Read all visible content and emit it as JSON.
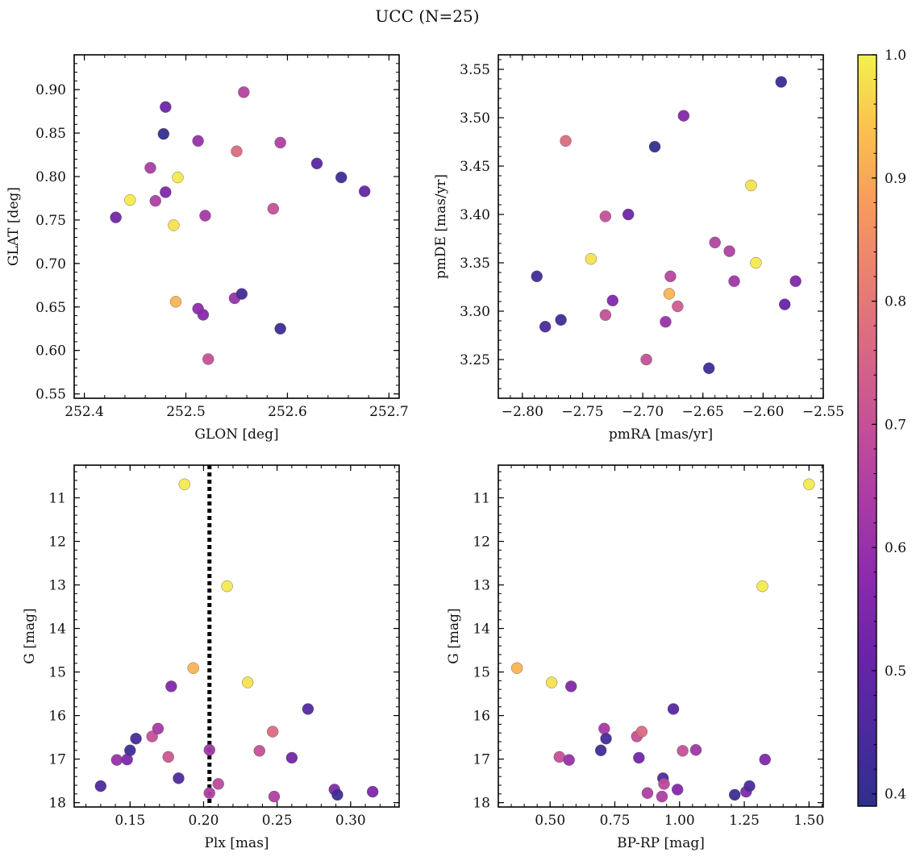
{
  "figure": {
    "title": "UCC (N=25)"
  },
  "colorbar": {
    "min": 0.39,
    "max": 1.0,
    "ticks": [
      0.4,
      0.5,
      0.6,
      0.7,
      0.8,
      0.9,
      1.0
    ],
    "tick_labels": [
      "0.4",
      "0.5",
      "0.6",
      "0.7",
      "0.8",
      "0.9",
      "1.0"
    ],
    "colormap": "plasma"
  },
  "chart_data": [
    {
      "type": "scatter",
      "id": "sky",
      "title": "",
      "xlabel": "GLON [deg]",
      "ylabel": "GLAT [deg]",
      "xlim": [
        252.39,
        252.71
      ],
      "ylim": [
        0.545,
        0.94
      ],
      "xticks": [
        252.4,
        252.5,
        252.6,
        252.7
      ],
      "xtick_labels": [
        "252.4",
        "252.5",
        "252.6",
        "252.7"
      ],
      "yticks": [
        0.55,
        0.6,
        0.65,
        0.7,
        0.75,
        0.8,
        0.85,
        0.9
      ],
      "ytick_labels": [
        "0.55",
        "0.60",
        "0.65",
        "0.70",
        "0.75",
        "0.80",
        "0.85",
        "0.90"
      ],
      "points": [
        {
          "x": 252.431,
          "y": 0.753,
          "c": 0.53
        },
        {
          "x": 252.445,
          "y": 0.773,
          "c": 0.99
        },
        {
          "x": 252.465,
          "y": 0.81,
          "c": 0.64
        },
        {
          "x": 252.47,
          "y": 0.772,
          "c": 0.65
        },
        {
          "x": 252.478,
          "y": 0.849,
          "c": 0.4
        },
        {
          "x": 252.48,
          "y": 0.88,
          "c": 0.52
        },
        {
          "x": 252.48,
          "y": 0.782,
          "c": 0.55
        },
        {
          "x": 252.488,
          "y": 0.744,
          "c": 0.98
        },
        {
          "x": 252.49,
          "y": 0.656,
          "c": 0.92
        },
        {
          "x": 252.492,
          "y": 0.799,
          "c": 0.99
        },
        {
          "x": 252.512,
          "y": 0.841,
          "c": 0.6
        },
        {
          "x": 252.512,
          "y": 0.648,
          "c": 0.58
        },
        {
          "x": 252.517,
          "y": 0.641,
          "c": 0.57
        },
        {
          "x": 252.519,
          "y": 0.755,
          "c": 0.63
        },
        {
          "x": 252.522,
          "y": 0.59,
          "c": 0.7
        },
        {
          "x": 252.548,
          "y": 0.66,
          "c": 0.6
        },
        {
          "x": 252.55,
          "y": 0.829,
          "c": 0.77
        },
        {
          "x": 252.555,
          "y": 0.665,
          "c": 0.44
        },
        {
          "x": 252.557,
          "y": 0.897,
          "c": 0.66
        },
        {
          "x": 252.586,
          "y": 0.763,
          "c": 0.7
        },
        {
          "x": 252.593,
          "y": 0.839,
          "c": 0.65
        },
        {
          "x": 252.593,
          "y": 0.625,
          "c": 0.42
        },
        {
          "x": 252.629,
          "y": 0.815,
          "c": 0.48
        },
        {
          "x": 252.653,
          "y": 0.799,
          "c": 0.43
        },
        {
          "x": 252.676,
          "y": 0.783,
          "c": 0.5
        }
      ]
    },
    {
      "type": "scatter",
      "id": "pm",
      "title": "",
      "xlabel": "pmRA [mas/yr]",
      "ylabel": "pmDE [mas/yr]",
      "xlim": [
        -2.82,
        -2.55
      ],
      "ylim": [
        3.21,
        3.565
      ],
      "xticks": [
        -2.8,
        -2.75,
        -2.7,
        -2.65,
        -2.6,
        -2.55
      ],
      "xtick_labels": [
        "−2.80",
        "−2.75",
        "−2.70",
        "−2.65",
        "−2.60",
        "−2.55"
      ],
      "yticks": [
        3.25,
        3.3,
        3.35,
        3.4,
        3.45,
        3.5,
        3.55
      ],
      "ytick_labels": [
        "3.25",
        "3.30",
        "3.35",
        "3.40",
        "3.45",
        "3.50",
        "3.55"
      ],
      "points": [
        {
          "x": -2.788,
          "y": 3.336,
          "c": 0.43
        },
        {
          "x": -2.781,
          "y": 3.284,
          "c": 0.45
        },
        {
          "x": -2.768,
          "y": 3.291,
          "c": 0.43
        },
        {
          "x": -2.764,
          "y": 3.476,
          "c": 0.77
        },
        {
          "x": -2.743,
          "y": 3.354,
          "c": 0.98
        },
        {
          "x": -2.731,
          "y": 3.398,
          "c": 0.7
        },
        {
          "x": -2.731,
          "y": 3.296,
          "c": 0.7
        },
        {
          "x": -2.725,
          "y": 3.311,
          "c": 0.56
        },
        {
          "x": -2.712,
          "y": 3.4,
          "c": 0.52
        },
        {
          "x": -2.697,
          "y": 3.25,
          "c": 0.7
        },
        {
          "x": -2.69,
          "y": 3.47,
          "c": 0.4
        },
        {
          "x": -2.681,
          "y": 3.289,
          "c": 0.6
        },
        {
          "x": -2.678,
          "y": 3.318,
          "c": 0.92
        },
        {
          "x": -2.677,
          "y": 3.336,
          "c": 0.67
        },
        {
          "x": -2.671,
          "y": 3.305,
          "c": 0.73
        },
        {
          "x": -2.666,
          "y": 3.502,
          "c": 0.56
        },
        {
          "x": -2.645,
          "y": 3.241,
          "c": 0.42
        },
        {
          "x": -2.64,
          "y": 3.371,
          "c": 0.66
        },
        {
          "x": -2.628,
          "y": 3.362,
          "c": 0.65
        },
        {
          "x": -2.624,
          "y": 3.331,
          "c": 0.62
        },
        {
          "x": -2.61,
          "y": 3.43,
          "c": 0.98
        },
        {
          "x": -2.606,
          "y": 3.35,
          "c": 0.99
        },
        {
          "x": -2.585,
          "y": 3.537,
          "c": 0.41
        },
        {
          "x": -2.582,
          "y": 3.307,
          "c": 0.5
        },
        {
          "x": -2.573,
          "y": 3.331,
          "c": 0.55
        }
      ]
    },
    {
      "type": "scatter",
      "id": "cmd_plx",
      "title": "",
      "xlabel": "Plx [mas]",
      "ylabel": "G [mag]",
      "xlim": [
        0.112,
        0.333
      ],
      "ylim": [
        18.1,
        10.25
      ],
      "y_inverted": true,
      "xticks": [
        0.15,
        0.2,
        0.25,
        0.3
      ],
      "xtick_labels": [
        "0.15",
        "0.20",
        "0.25",
        "0.30"
      ],
      "yticks": [
        11,
        12,
        13,
        14,
        15,
        16,
        17,
        18
      ],
      "ytick_labels": [
        "11",
        "12",
        "13",
        "14",
        "15",
        "16",
        "17",
        "18"
      ],
      "vline": 0.204,
      "points": [
        {
          "x": 0.13,
          "y": 17.62,
          "c": 0.45
        },
        {
          "x": 0.141,
          "y": 17.02,
          "c": 0.6
        },
        {
          "x": 0.148,
          "y": 17.01,
          "c": 0.55
        },
        {
          "x": 0.15,
          "y": 16.8,
          "c": 0.43
        },
        {
          "x": 0.154,
          "y": 16.53,
          "c": 0.44
        },
        {
          "x": 0.165,
          "y": 16.48,
          "c": 0.7
        },
        {
          "x": 0.169,
          "y": 16.3,
          "c": 0.63
        },
        {
          "x": 0.176,
          "y": 16.95,
          "c": 0.72
        },
        {
          "x": 0.178,
          "y": 15.33,
          "c": 0.56
        },
        {
          "x": 0.183,
          "y": 17.44,
          "c": 0.46
        },
        {
          "x": 0.187,
          "y": 10.69,
          "c": 0.99
        },
        {
          "x": 0.193,
          "y": 14.91,
          "c": 0.92
        },
        {
          "x": 0.204,
          "y": 17.78,
          "c": 0.65
        },
        {
          "x": 0.204,
          "y": 16.79,
          "c": 0.62
        },
        {
          "x": 0.21,
          "y": 17.57,
          "c": 0.68
        },
        {
          "x": 0.216,
          "y": 13.03,
          "c": 0.99
        },
        {
          "x": 0.23,
          "y": 15.24,
          "c": 0.98
        },
        {
          "x": 0.238,
          "y": 16.81,
          "c": 0.7
        },
        {
          "x": 0.247,
          "y": 16.37,
          "c": 0.77
        },
        {
          "x": 0.248,
          "y": 17.86,
          "c": 0.65
        },
        {
          "x": 0.26,
          "y": 16.97,
          "c": 0.53
        },
        {
          "x": 0.271,
          "y": 15.85,
          "c": 0.47
        },
        {
          "x": 0.289,
          "y": 17.7,
          "c": 0.56
        },
        {
          "x": 0.291,
          "y": 17.82,
          "c": 0.42
        },
        {
          "x": 0.315,
          "y": 17.75,
          "c": 0.55
        }
      ]
    },
    {
      "type": "scatter",
      "id": "cmd_color",
      "title": "",
      "xlabel": "BP-RP [mag]",
      "ylabel": "G [mag]",
      "xlim": [
        0.3,
        1.555
      ],
      "ylim": [
        18.1,
        10.25
      ],
      "y_inverted": true,
      "xticks": [
        0.5,
        0.75,
        1.0,
        1.25,
        1.5
      ],
      "xtick_labels": [
        "0.50",
        "0.75",
        "1.00",
        "1.25",
        "1.50"
      ],
      "yticks": [
        11,
        12,
        13,
        14,
        15,
        16,
        17,
        18
      ],
      "ytick_labels": [
        "11",
        "12",
        "13",
        "14",
        "15",
        "16",
        "17",
        "18"
      ],
      "points": [
        {
          "x": 0.372,
          "y": 14.91,
          "c": 0.92
        },
        {
          "x": 0.506,
          "y": 15.24,
          "c": 0.98
        },
        {
          "x": 0.536,
          "y": 16.95,
          "c": 0.7
        },
        {
          "x": 0.573,
          "y": 17.02,
          "c": 0.6
        },
        {
          "x": 0.581,
          "y": 15.33,
          "c": 0.56
        },
        {
          "x": 0.696,
          "y": 16.8,
          "c": 0.43
        },
        {
          "x": 0.709,
          "y": 16.3,
          "c": 0.63
        },
        {
          "x": 0.716,
          "y": 16.53,
          "c": 0.44
        },
        {
          "x": 0.835,
          "y": 16.48,
          "c": 0.7
        },
        {
          "x": 0.843,
          "y": 16.97,
          "c": 0.53
        },
        {
          "x": 0.854,
          "y": 16.37,
          "c": 0.77
        },
        {
          "x": 0.876,
          "y": 17.78,
          "c": 0.65
        },
        {
          "x": 0.932,
          "y": 17.86,
          "c": 0.65
        },
        {
          "x": 0.936,
          "y": 17.44,
          "c": 0.46
        },
        {
          "x": 0.94,
          "y": 17.57,
          "c": 0.68
        },
        {
          "x": 0.976,
          "y": 15.85,
          "c": 0.47
        },
        {
          "x": 0.992,
          "y": 17.7,
          "c": 0.56
        },
        {
          "x": 1.012,
          "y": 16.81,
          "c": 0.7
        },
        {
          "x": 1.063,
          "y": 16.79,
          "c": 0.62
        },
        {
          "x": 1.213,
          "y": 17.82,
          "c": 0.42
        },
        {
          "x": 1.257,
          "y": 17.75,
          "c": 0.55
        },
        {
          "x": 1.27,
          "y": 17.62,
          "c": 0.45
        },
        {
          "x": 1.32,
          "y": 13.03,
          "c": 0.99
        },
        {
          "x": 1.33,
          "y": 17.01,
          "c": 0.55
        },
        {
          "x": 1.5,
          "y": 10.69,
          "c": 0.99
        }
      ]
    }
  ]
}
